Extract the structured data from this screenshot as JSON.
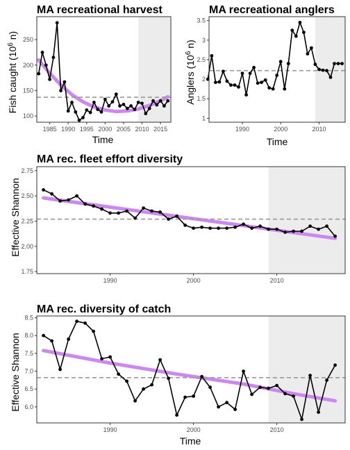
{
  "colors": {
    "series_line": "#000000",
    "trend": "#cc88ee",
    "mean_line": "#999999",
    "shade": "#ececec",
    "panel_border": "#333333"
  },
  "chart_data": [
    {
      "type": "line",
      "title": "MA recreational harvest",
      "xlabel": "Time",
      "ylabel": "Fish caught (10",
      "ylabel_sup": "6",
      "ylabel_tail": " n)",
      "xlim": [
        1981.5,
        2017.8
      ],
      "ylim": [
        88,
        295
      ],
      "xticks": [
        1985,
        1990,
        1995,
        2000,
        2005,
        2010,
        2015
      ],
      "yticks": [
        100,
        150,
        200,
        250
      ],
      "shade_start": 2009,
      "mean_line": 137,
      "x": [
        1982,
        1983,
        1984,
        1985,
        1986,
        1987,
        1988,
        1989,
        1990,
        1991,
        1992,
        1993,
        1994,
        1995,
        1996,
        1997,
        1998,
        1999,
        2000,
        2001,
        2002,
        2003,
        2004,
        2005,
        2006,
        2007,
        2008,
        2009,
        2010,
        2011,
        2012,
        2013,
        2014,
        2015,
        2016,
        2017
      ],
      "series": [
        {
          "values": [
            183,
            225,
            200,
            172,
            215,
            283,
            150,
            167,
            110,
            127,
            108,
            92,
            97,
            112,
            107,
            127,
            113,
            108,
            133,
            120,
            128,
            143,
            120,
            123,
            115,
            120,
            113,
            127,
            125,
            105,
            115,
            130,
            122,
            130,
            120,
            130
          ]
        }
      ],
      "trend": {
        "x": [
          1982,
          1985,
          1988,
          1991,
          1994,
          1997,
          2000,
          2003,
          2006,
          2009,
          2012,
          2015,
          2017
        ],
        "values": [
          210,
          184,
          161,
          142,
          128,
          118,
          112,
          109,
          110,
          114,
          121,
          130,
          138
        ]
      }
    },
    {
      "type": "line",
      "title": "MA recreational anglers",
      "xlabel": "Time",
      "ylabel": "Anglers (10",
      "ylabel_sup": "6",
      "ylabel_tail": " n)",
      "xlim": [
        1981.3,
        2016.8
      ],
      "ylim": [
        0.9,
        3.6
      ],
      "xticks": [
        1990,
        2000,
        2010
      ],
      "yticks": [
        1,
        1.5,
        2,
        2.5,
        3,
        3.5
      ],
      "ytick_labels": [
        "1",
        "1.5",
        "2",
        "2.5",
        "3",
        "3.5"
      ],
      "shade_start": 2009,
      "mean_line": 2.22,
      "x": [
        1981,
        1982,
        1983,
        1984,
        1985,
        1986,
        1987,
        1988,
        1989,
        1990,
        1991,
        1992,
        1993,
        1994,
        1995,
        1996,
        1997,
        1998,
        1999,
        2000,
        2001,
        2002,
        2003,
        2004,
        2005,
        2006,
        2007,
        2008,
        2009,
        2010,
        2011,
        2012,
        2013,
        2014,
        2015,
        2016
      ],
      "series": [
        {
          "values": [
            2.0,
            2.6,
            1.92,
            1.93,
            2.2,
            1.95,
            1.85,
            1.85,
            1.8,
            2.15,
            1.6,
            2.15,
            2.3,
            1.9,
            1.92,
            1.98,
            1.78,
            1.75,
            2.1,
            2.45,
            1.75,
            2.4,
            3.25,
            3.1,
            3.45,
            3.2,
            2.65,
            2.8,
            2.38,
            2.25,
            2.23,
            2.22,
            2.05,
            2.4,
            2.4,
            2.4
          ]
        }
      ]
    },
    {
      "type": "line",
      "title": "MA rec. fleet effort diversity",
      "xlabel": "",
      "ylabel": "Effective Shannon",
      "xlim": [
        1981.2,
        2018.2
      ],
      "ylim": [
        1.73,
        2.79
      ],
      "xticks": [
        1990,
        2000,
        2010
      ],
      "yticks": [
        1.75,
        2.0,
        2.25,
        2.5,
        2.75
      ],
      "ytick_labels": [
        "1.75",
        "2.00",
        "2.25",
        "2.50",
        "2.75"
      ],
      "shade_start": 2009,
      "mean_line": 2.27,
      "x": [
        1982,
        1983,
        1984,
        1985,
        1986,
        1987,
        1988,
        1989,
        1990,
        1991,
        1992,
        1993,
        1994,
        1995,
        1996,
        1997,
        1998,
        1999,
        2000,
        2001,
        2002,
        2003,
        2004,
        2005,
        2006,
        2007,
        2008,
        2009,
        2010,
        2011,
        2012,
        2013,
        2014,
        2015,
        2016,
        2017
      ],
      "series": [
        {
          "values": [
            2.56,
            2.52,
            2.45,
            2.46,
            2.5,
            2.42,
            2.4,
            2.37,
            2.33,
            2.33,
            2.35,
            2.28,
            2.38,
            2.35,
            2.34,
            2.27,
            2.3,
            2.21,
            2.18,
            2.19,
            2.18,
            2.18,
            2.18,
            2.19,
            2.22,
            2.18,
            2.2,
            2.17,
            2.17,
            2.14,
            2.15,
            2.15,
            2.2,
            2.17,
            2.2,
            2.1
          ]
        }
      ],
      "trend": {
        "x": [
          1982,
          2017
        ],
        "values": [
          2.48,
          2.08
        ]
      }
    },
    {
      "type": "line",
      "title": "MA rec. diversity of catch",
      "xlabel": "Time",
      "ylabel": "Effective Shannon",
      "xlim": [
        1981.2,
        2018.2
      ],
      "ylim": [
        5.55,
        8.55
      ],
      "xticks": [
        1990,
        2000,
        2010
      ],
      "yticks": [
        6.0,
        6.5,
        7.0,
        7.5,
        8.0,
        8.5
      ],
      "ytick_labels": [
        "6.0",
        "6.5",
        "7.0",
        "7.5",
        "8.0",
        "8.5"
      ],
      "shade_start": 2009,
      "mean_line": 6.82,
      "x": [
        1982,
        1983,
        1984,
        1985,
        1986,
        1987,
        1988,
        1989,
        1990,
        1991,
        1992,
        1993,
        1994,
        1995,
        1996,
        1997,
        1998,
        1999,
        2000,
        2001,
        2002,
        2003,
        2004,
        2005,
        2006,
        2007,
        2008,
        2009,
        2010,
        2011,
        2012,
        2013,
        2014,
        2015,
        2016,
        2017
      ],
      "series": [
        {
          "values": [
            8.0,
            7.85,
            7.05,
            7.9,
            8.4,
            8.35,
            8.12,
            7.35,
            7.4,
            6.92,
            6.72,
            6.17,
            6.5,
            6.62,
            7.32,
            6.8,
            5.77,
            6.27,
            6.3,
            6.85,
            6.55,
            6.0,
            6.12,
            5.93,
            7.0,
            6.35,
            6.55,
            6.52,
            6.6,
            6.37,
            6.3,
            5.65,
            6.88,
            5.85,
            6.75,
            7.17
          ]
        }
      ],
      "trend": {
        "x": [
          1982,
          1990,
          1998,
          2006,
          2012,
          2017
        ],
        "values": [
          7.58,
          7.23,
          6.92,
          6.64,
          6.37,
          6.17
        ]
      }
    }
  ]
}
